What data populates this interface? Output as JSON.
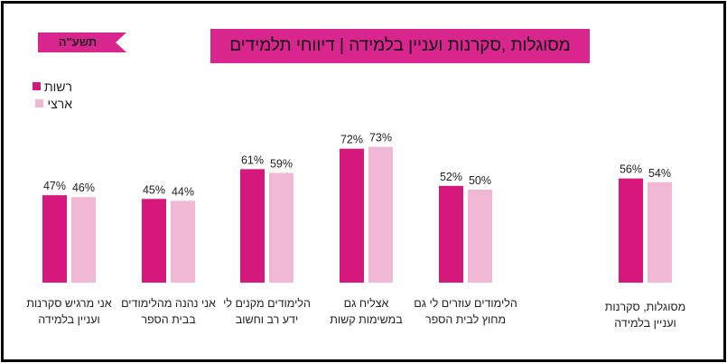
{
  "year_tag": "תשע\"ה",
  "title": "מסוגלות ,סקרנות ועניין בלמידה | דיווחי תלמידים",
  "colors": {
    "rashut": "#d6177c",
    "arzi": "#f1b8d6",
    "title_bg": "#d9258e"
  },
  "chart_data": {
    "type": "bar",
    "title": "מסוגלות ,סקרנות ועניין בלמידה | דיווחי תלמידים",
    "xlabel": "",
    "ylabel": "",
    "ylim": [
      0,
      100
    ],
    "grid": false,
    "legend": "top-left",
    "categories": [
      [
        "אני מרגיש סקרנות",
        "ועניין בלמידה"
      ],
      [
        "אני נהנה מהלימודים",
        "בבית הספר"
      ],
      [
        "הלימודים מקנים לי",
        "ידע רב וחשוב"
      ],
      [
        "אצליח גם",
        "במשימות קשות"
      ],
      [
        "הלימודים עוזרים לי גם",
        "מחוץ לבית הספר"
      ],
      [
        "מסוגלות, סקרנות",
        "ועניין בלמידה"
      ]
    ],
    "series": [
      {
        "name": "רשות",
        "values": [
          47,
          45,
          61,
          72,
          52,
          56
        ]
      },
      {
        "name": "ארצי",
        "values": [
          46,
          44,
          59,
          73,
          50,
          54
        ]
      }
    ],
    "value_suffix": "%"
  }
}
